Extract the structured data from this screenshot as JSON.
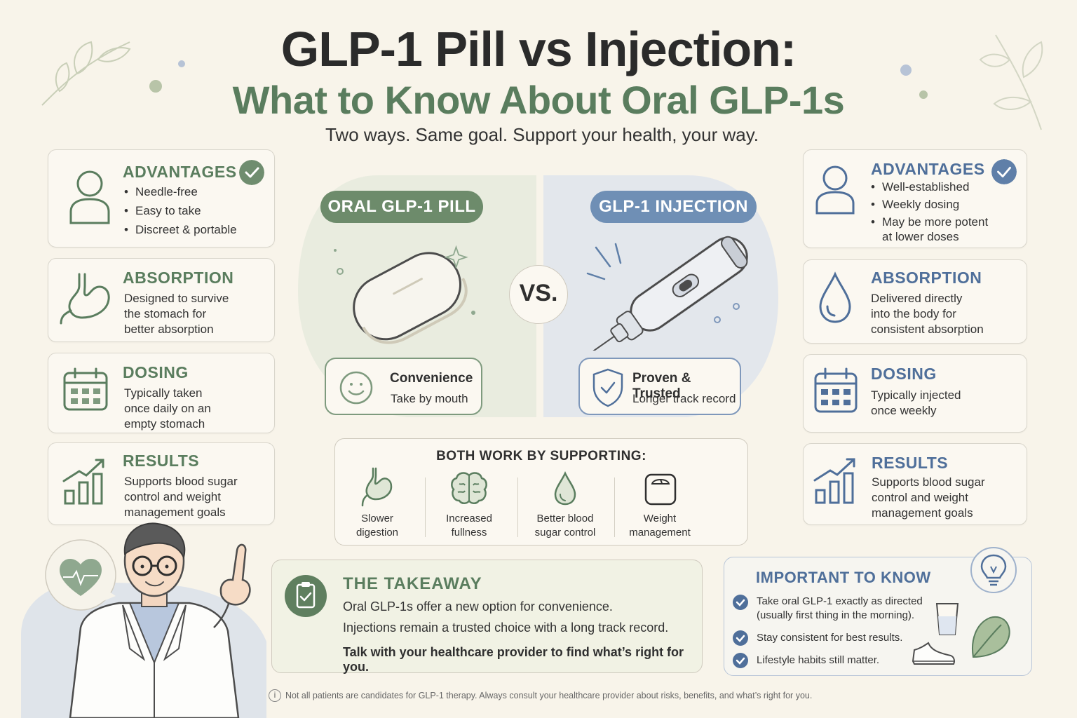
{
  "header": {
    "title": "GLP-1 Pill vs Injection:",
    "subtitle": "What to Know About Oral GLP-1s",
    "tagline": "Two ways. Same goal. Support your health, your way."
  },
  "colors": {
    "green": "#5a7d5e",
    "blue": "#4f6f9a",
    "background": "#f8f4ea"
  },
  "left": {
    "advantages": {
      "title": "ADVANTAGES",
      "items": [
        "Needle-free",
        "Easy to take",
        "Discreet & portable"
      ],
      "icon": "person-icon"
    },
    "absorption": {
      "title": "ABSORPTION",
      "lines": [
        "Designed to survive",
        "the stomach for",
        "better absorption"
      ],
      "icon": "stomach-icon"
    },
    "dosing": {
      "title": "DOSING",
      "lines": [
        "Typically taken",
        "once daily on an",
        "empty stomach"
      ],
      "icon": "calendar-icon"
    },
    "results": {
      "title": "RESULTS",
      "lines": [
        "Supports blood sugar",
        "control and weight",
        "management goals"
      ],
      "icon": "bar-chart-icon"
    }
  },
  "right": {
    "advantages": {
      "title": "ADVANTAGES",
      "items": [
        "Well-established",
        "Weekly dosing",
        "May be more potent"
      ],
      "extra_line": "at lower doses",
      "icon": "person-icon"
    },
    "absorption": {
      "title": "ABSORPTION",
      "lines": [
        "Delivered directly",
        "into the body for",
        "consistent absorption"
      ],
      "icon": "drop-icon"
    },
    "dosing": {
      "title": "DOSING",
      "lines": [
        "Typically injected",
        "once weekly"
      ],
      "icon": "calendar-icon"
    },
    "results": {
      "title": "RESULTS",
      "lines": [
        "Supports blood sugar",
        "control and weight",
        "management goals"
      ],
      "icon": "bar-chart-icon"
    }
  },
  "center": {
    "pill_label": "ORAL GLP-1 PILL",
    "injection_label": "GLP-1 INJECTION",
    "vs": "VS.",
    "pill_feature": {
      "title": "Convenience",
      "sub": "Take by mouth",
      "icon": "smiley-icon"
    },
    "injection_feature": {
      "title": "Proven & Trusted",
      "sub": "Longer track record",
      "icon": "shield-check-icon"
    }
  },
  "both": {
    "title": "BOTH WORK BY SUPPORTING:",
    "items": [
      {
        "lines": [
          "Slower",
          "digestion"
        ],
        "icon": "stomach-icon"
      },
      {
        "lines": [
          "Increased",
          "fullness"
        ],
        "icon": "brain-icon"
      },
      {
        "lines": [
          "Better blood",
          "sugar control"
        ],
        "icon": "drop-icon"
      },
      {
        "lines": [
          "Weight",
          "management"
        ],
        "icon": "scale-icon"
      }
    ]
  },
  "takeaway": {
    "title": "THE TAKEAWAY",
    "line1": "Oral GLP-1s offer a new option for convenience.",
    "line2": "Injections remain a trusted choice with a long track record.",
    "line3": "Talk with your healthcare provider to find what’s right for you.",
    "icon": "clipboard-check-icon"
  },
  "important": {
    "title": "IMPORTANT TO KNOW",
    "items": [
      {
        "lines": [
          "Take oral GLP-1 exactly as directed",
          "(usually first thing in the morning)."
        ]
      },
      {
        "lines": [
          "Stay consistent for best results."
        ]
      },
      {
        "lines": [
          "Lifestyle habits still matter."
        ]
      }
    ],
    "icon": "lightbulb-icon"
  },
  "footnote": "Not all patients are candidates for GLP-1 therapy. Always consult your healthcare provider about risks, benefits, and what’s right for you."
}
